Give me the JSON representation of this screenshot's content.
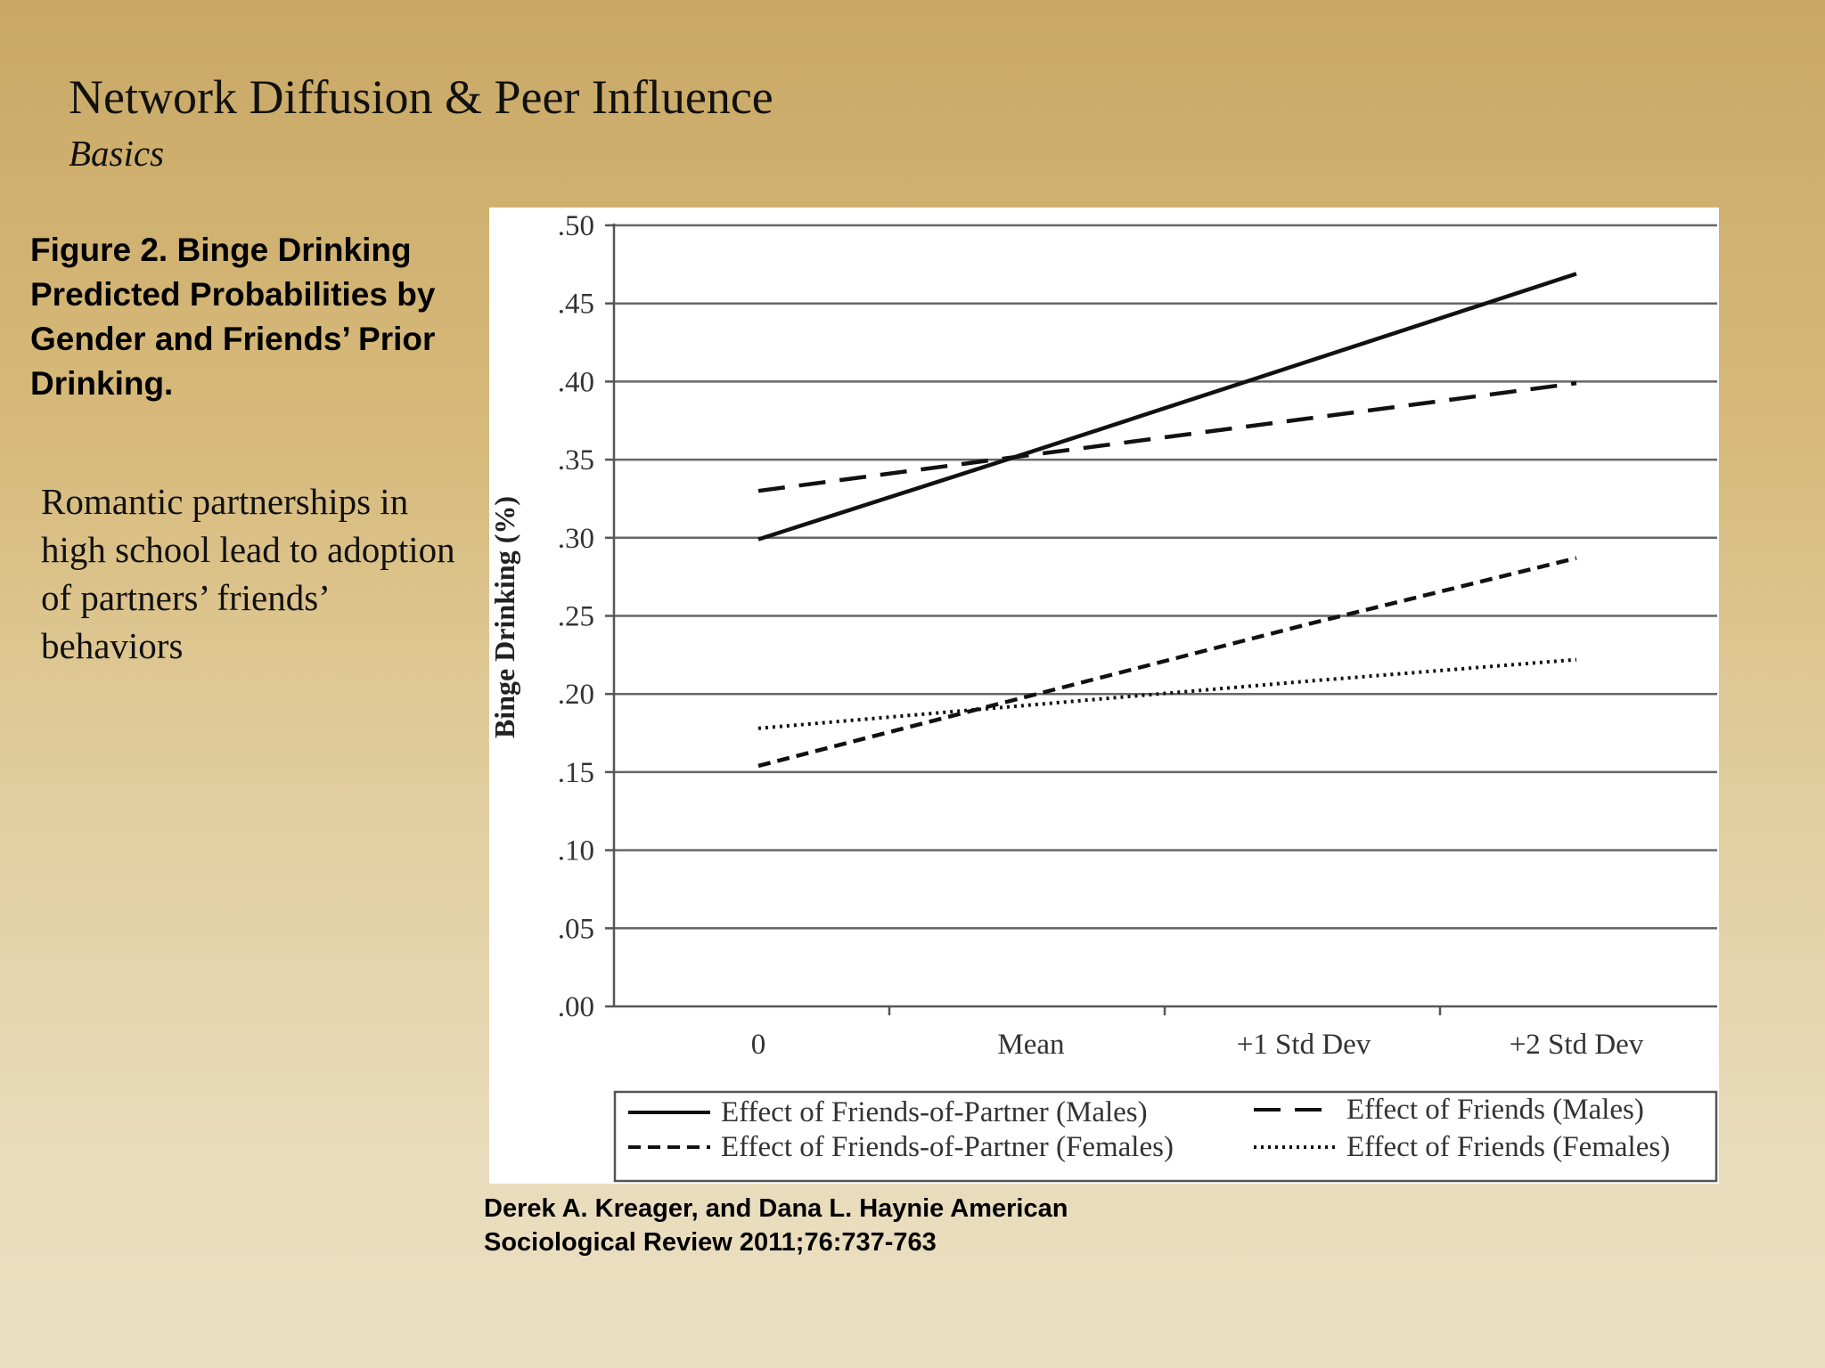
{
  "slide": {
    "title": "Network Diffusion & Peer Influence",
    "subtitle": "Basics",
    "figure_caption": "Figure 2. Binge Drinking Predicted Probabilities by Gender and Friends’ Prior Drinking.",
    "body": "Romantic partnerships in high school lead to adoption of partners’ friends’ behaviors",
    "citation_line1": "Derek A. Kreager, and Dana L. Haynie American",
    "citation_line2": "Sociological Review 2011;76:737-763"
  },
  "chart_data": {
    "type": "line",
    "title": "",
    "xlabel": "",
    "ylabel": "Binge Drinking (%)",
    "categories": [
      "0",
      "Mean",
      "+1 Std Dev",
      "+2 Std Dev"
    ],
    "ylim": [
      0,
      0.5
    ],
    "yticks": [
      0,
      0.05,
      0.1,
      0.15,
      0.2,
      0.25,
      0.3,
      0.35,
      0.4,
      0.45,
      0.5
    ],
    "ytick_labels": [
      ".00",
      ".05",
      ".10",
      ".15",
      ".20",
      ".25",
      ".30",
      ".35",
      ".40",
      ".45",
      ".50"
    ],
    "grid": true,
    "legend_position": "bottom",
    "series": [
      {
        "name": "Effect of Friends-of-Partner (Males)",
        "style": "solid",
        "values": [
          0.299,
          0.355,
          0.412,
          0.469
        ]
      },
      {
        "name": "Effect of Friends (Males)",
        "style": "dashed",
        "values": [
          0.33,
          0.353,
          0.376,
          0.399
        ]
      },
      {
        "name": "Effect of Friends-of-Partner (Females)",
        "style": "shortdash",
        "values": [
          0.154,
          0.199,
          0.244,
          0.287
        ]
      },
      {
        "name": "Effect of Friends (Females)",
        "style": "dotted",
        "values": [
          0.178,
          0.193,
          0.208,
          0.222
        ]
      }
    ]
  }
}
